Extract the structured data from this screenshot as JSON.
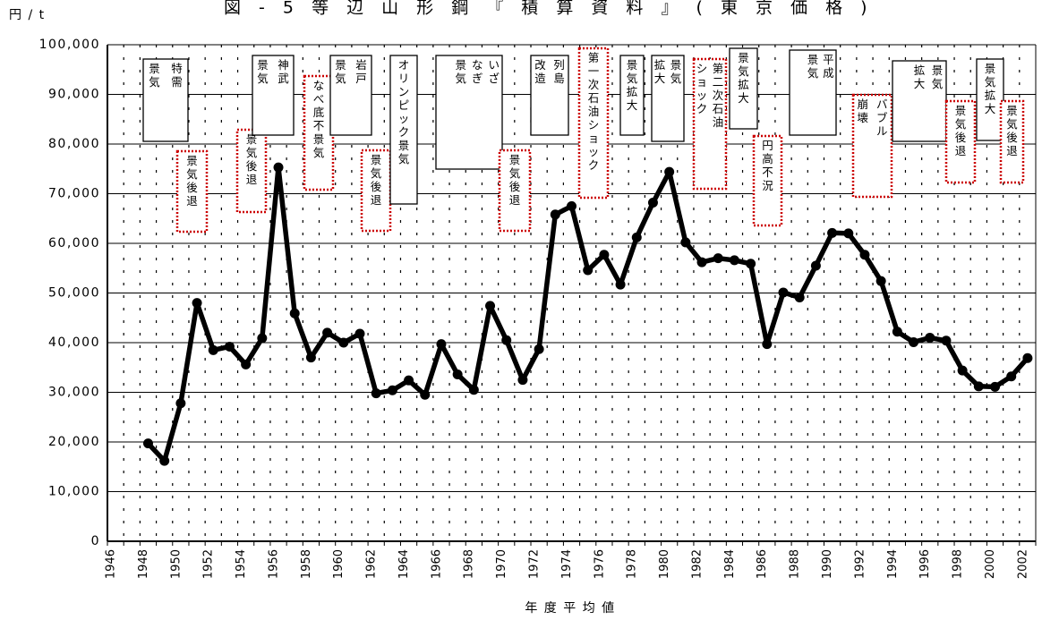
{
  "title": "図 - 5 等 辺 山 形 鋼 『 積 算 資 料 』 ( 東 京 価 格 )",
  "ylabel": "円 / t",
  "xlabel": "年 度 平 均 値",
  "colors": {
    "line": "#000000",
    "grid": "#000000",
    "recession_border": "#cc0000",
    "boom_border": "#000000"
  },
  "chart_data": {
    "type": "line",
    "title": "図 - 5 等 辺 山 形 鋼 『 積 算 資 料 』 ( 東 京 価 格 )",
    "xlabel": "年 度 平 均 値",
    "ylabel": "円 / t",
    "xlim": [
      1946,
      2003
    ],
    "ylim": [
      0,
      100000
    ],
    "x_ticks": [
      "1946",
      "1948",
      "1950",
      "1952",
      "1954",
      "1956",
      "1958",
      "1960",
      "1962",
      "1964",
      "1966",
      "1968",
      "1970",
      "1972",
      "1974",
      "1976",
      "1978",
      "1980",
      "1982",
      "1984",
      "1986",
      "1988",
      "1990",
      "1992",
      "1994",
      "1996",
      "1998",
      "2000",
      "2002"
    ],
    "y_ticks": [
      "0",
      "10,000",
      "20,000",
      "30,000",
      "40,000",
      "50,000",
      "60,000",
      "70,000",
      "80,000",
      "90,000",
      "100,000"
    ],
    "grid": {
      "horizontal": "solid",
      "vertical": "dotted"
    },
    "series": [
      {
        "x": [
          1948.5,
          1949.5,
          1950.5,
          1951.5,
          1952.5,
          1953.5,
          1954.5,
          1955.5,
          1956.5,
          1957.5,
          1958.5,
          1959.5,
          1960.5,
          1961.5,
          1962.5,
          1963.5,
          1964.5,
          1965.5,
          1966.5,
          1967.5,
          1968.5,
          1969.5,
          1970.5,
          1971.5,
          1972.5,
          1973.5,
          1974.5,
          1975.5,
          1976.5,
          1977.5,
          1978.5,
          1979.5,
          1980.5,
          1981.5,
          1982.5,
          1983.5,
          1984.5,
          1985.5,
          1986.5,
          1987.5,
          1988.5,
          1989.5,
          1990.5,
          1991.5,
          1992.5,
          1993.5,
          1994.5,
          1995.5,
          1996.5,
          1997.5,
          1998.5,
          1999.5,
          2000.5,
          2001.5,
          2002.5
        ],
        "values": [
          19700,
          16200,
          27800,
          48000,
          38500,
          39200,
          35600,
          40900,
          75300,
          45900,
          37000,
          42000,
          40000,
          41800,
          29800,
          30400,
          32400,
          29500,
          39700,
          33600,
          30500,
          47400,
          40500,
          32500,
          38700,
          65800,
          67500,
          54600,
          57700,
          51700,
          61200,
          68200,
          74400,
          60200,
          56200,
          57000,
          56600,
          55900,
          39700,
          50100,
          49100,
          55500,
          62100,
          62000,
          57700,
          52400,
          42200,
          40100,
          41000,
          40400,
          34400,
          31200,
          31100,
          33200,
          36900
        ]
      }
    ],
    "annotations": [
      {
        "text": "特需景気",
        "type": "boom"
      },
      {
        "text": "景気後退",
        "type": "recession"
      },
      {
        "text": "景気後退",
        "type": "recession"
      },
      {
        "text": "神武景気",
        "type": "boom"
      },
      {
        "text": "なべ底不景気",
        "type": "recession"
      },
      {
        "text": "岩戸景気",
        "type": "boom"
      },
      {
        "text": "景気後退",
        "type": "recession"
      },
      {
        "text": "オリンピック景気",
        "type": "boom"
      },
      {
        "text": "いざなぎ景気",
        "type": "boom"
      },
      {
        "text": "景気後退",
        "type": "recession"
      },
      {
        "text": "列島改造",
        "type": "boom"
      },
      {
        "text": "第一次石油ショック",
        "type": "recession"
      },
      {
        "text": "景気拡大",
        "type": "boom"
      },
      {
        "text": "景気拡大",
        "type": "boom"
      },
      {
        "text": "第二次石油ショック",
        "type": "recession"
      },
      {
        "text": "景気拡大",
        "type": "boom"
      },
      {
        "text": "円高不況",
        "type": "recession"
      },
      {
        "text": "平成景気",
        "type": "boom"
      },
      {
        "text": "バブル崩壊",
        "type": "recession"
      },
      {
        "text": "景気拡大",
        "type": "boom"
      },
      {
        "text": "景気後退",
        "type": "recession"
      },
      {
        "text": "景気拡大",
        "type": "boom"
      },
      {
        "text": "景気後退",
        "type": "recession"
      }
    ]
  }
}
